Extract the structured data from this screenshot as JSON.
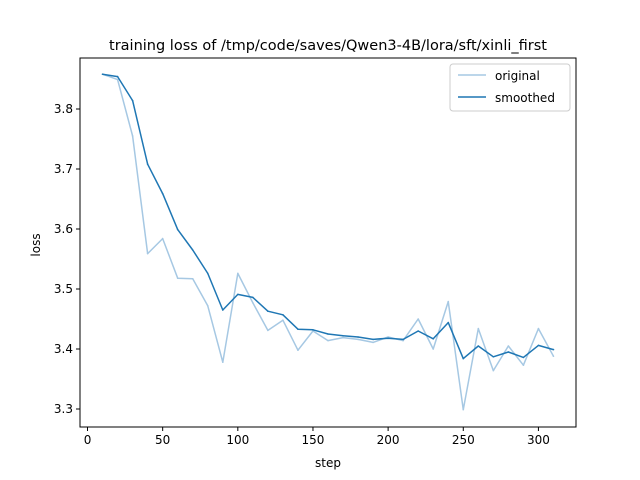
{
  "chart_data": {
    "type": "line",
    "title": "training loss of /tmp/code/saves/Qwen3-4B/lora/sft/xinli_first",
    "xlabel": "step",
    "ylabel": "loss",
    "xlim": [
      -5,
      325
    ],
    "ylim": [
      3.27,
      3.885
    ],
    "xticks": [
      0,
      50,
      100,
      150,
      200,
      250,
      300
    ],
    "yticks": [
      3.3,
      3.4,
      3.5,
      3.6,
      3.7,
      3.8
    ],
    "legend_position": "top-right",
    "grid": false,
    "series": [
      {
        "name": "original",
        "color": "#a6c8e3",
        "x": [
          10,
          20,
          30,
          40,
          50,
          60,
          70,
          80,
          90,
          100,
          110,
          120,
          130,
          140,
          150,
          160,
          170,
          180,
          190,
          200,
          210,
          220,
          230,
          240,
          250,
          260,
          270,
          280,
          290,
          300,
          310
        ],
        "y": [
          3.858,
          3.849,
          3.755,
          3.559,
          3.584,
          3.518,
          3.517,
          3.472,
          3.378,
          3.526,
          3.477,
          3.431,
          3.448,
          3.398,
          3.43,
          3.414,
          3.419,
          3.416,
          3.411,
          3.42,
          3.414,
          3.45,
          3.4,
          3.479,
          3.299,
          3.434,
          3.364,
          3.405,
          3.373,
          3.434,
          3.388
        ]
      },
      {
        "name": "smoothed",
        "color": "#1f77b4",
        "x": [
          10,
          20,
          30,
          40,
          50,
          60,
          70,
          80,
          90,
          100,
          110,
          120,
          130,
          140,
          150,
          160,
          170,
          180,
          190,
          200,
          210,
          220,
          230,
          240,
          250,
          260,
          270,
          280,
          290,
          300,
          310
        ],
        "y": [
          3.858,
          3.854,
          3.814,
          3.708,
          3.659,
          3.599,
          3.565,
          3.526,
          3.465,
          3.491,
          3.486,
          3.463,
          3.457,
          3.433,
          3.432,
          3.425,
          3.422,
          3.42,
          3.416,
          3.418,
          3.416,
          3.43,
          3.417,
          3.444,
          3.384,
          3.405,
          3.387,
          3.395,
          3.386,
          3.406,
          3.399
        ]
      }
    ]
  }
}
